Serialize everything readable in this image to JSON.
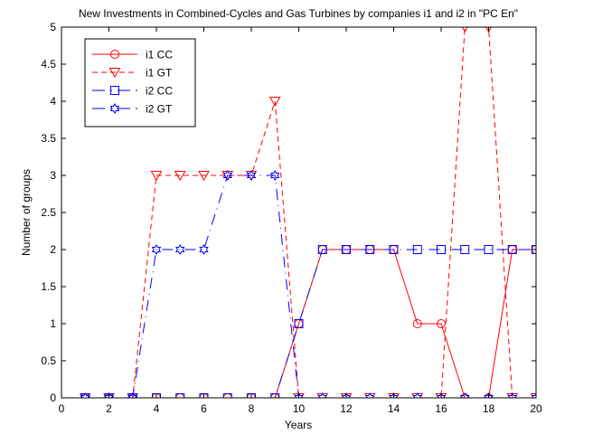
{
  "chart_data": {
    "type": "line",
    "title": "New Investments in Combined-Cycles and Gas Turbines by companies i1 and i2 in \"PC En\"",
    "xlabel": "Years",
    "ylabel": "Number of groups",
    "xlim": [
      0,
      20
    ],
    "ylim": [
      0,
      5
    ],
    "xticks": [
      0,
      2,
      4,
      6,
      8,
      10,
      12,
      14,
      16,
      18,
      20
    ],
    "yticks": [
      0,
      0.5,
      1,
      1.5,
      2,
      2.5,
      3,
      3.5,
      4,
      4.5,
      5
    ],
    "ytick_labels": [
      "0",
      "0.5",
      "1",
      "1.5",
      "2",
      "2.5",
      "3",
      "3.5",
      "4",
      "4.5",
      "5"
    ],
    "grid": false,
    "legend_position": "top-left",
    "x": [
      1,
      2,
      3,
      4,
      5,
      6,
      7,
      8,
      9,
      10,
      11,
      12,
      13,
      14,
      15,
      16,
      17,
      18,
      19,
      20
    ],
    "series": [
      {
        "name": "i1 CC",
        "color": "#ff0000",
        "line": "solid",
        "marker": "circle",
        "values": [
          0,
          0,
          0,
          0,
          0,
          0,
          0,
          0,
          0,
          1,
          2,
          2,
          2,
          2,
          1,
          1,
          0,
          0,
          2,
          2
        ]
      },
      {
        "name": "i1 GT",
        "color": "#ff0000",
        "line": "dashed",
        "marker": "triangle-down",
        "values": [
          0,
          0,
          0,
          3,
          3,
          3,
          3,
          3,
          4,
          0,
          0,
          0,
          0,
          0,
          0,
          0,
          5,
          5,
          0,
          0
        ]
      },
      {
        "name": "i2 CC",
        "color": "#0000ff",
        "line": "dashdot",
        "marker": "square",
        "values": [
          0,
          0,
          0,
          0,
          0,
          0,
          0,
          0,
          0,
          1,
          2,
          2,
          2,
          2,
          2,
          2,
          2,
          2,
          2,
          2
        ]
      },
      {
        "name": "i2 GT",
        "color": "#0000ff",
        "line": "dashdot",
        "marker": "hexagram",
        "values": [
          0,
          0,
          0,
          2,
          2,
          2,
          3,
          3,
          3,
          0,
          0,
          0,
          0,
          0,
          0,
          0,
          0,
          0,
          0,
          0
        ]
      }
    ]
  }
}
